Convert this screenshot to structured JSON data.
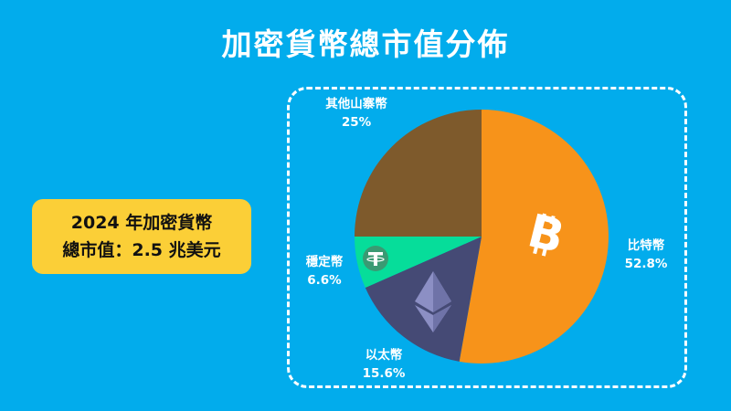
{
  "title": "加密貨幣總市值分佈",
  "info_box": {
    "line1": "2024 年加密貨幣",
    "line2": "總市值：2.5 兆美元"
  },
  "colors": {
    "background": "#02acec",
    "info_box": "#fbcf37",
    "bitcoin": "#f7931a",
    "ethereum": "#454a75",
    "stablecoin": "#06dd9a",
    "altcoins": "#7e5a2c"
  },
  "labels": {
    "bitcoin": {
      "name": "比特幣",
      "pct": "52.8%",
      "icon": "bitcoin-icon"
    },
    "ethereum": {
      "name": "以太幣",
      "pct": "15.6%",
      "icon": "ethereum-icon"
    },
    "stablecoin": {
      "name": "穩定幣",
      "pct": "6.6%",
      "icon": "tether-icon"
    },
    "altcoins": {
      "name": "其他山寨幣",
      "pct": "25%"
    }
  },
  "chart_data": {
    "type": "pie",
    "title": "加密貨幣總市值分佈",
    "subtitle": "2024 年加密貨幣總市值：2.5 兆美元",
    "categories": [
      "比特幣",
      "以太幣",
      "穩定幣",
      "其他山寨幣"
    ],
    "values": [
      52.8,
      15.6,
      6.6,
      25
    ],
    "unit": "%",
    "colors": [
      "#f7931a",
      "#454a75",
      "#06dd9a",
      "#7e5a2c"
    ],
    "start_angle": "12 o'clock, clockwise",
    "legend": "none (direct labels)"
  }
}
